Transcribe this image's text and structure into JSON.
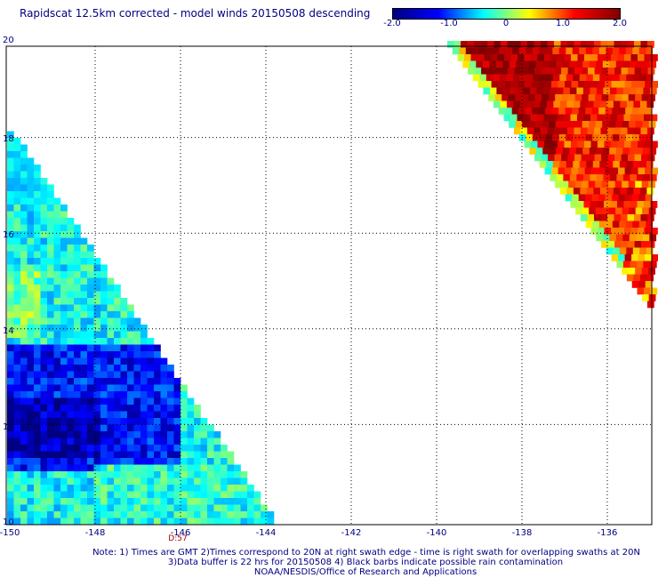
{
  "title": "Rapidscat 12.5km corrected - model winds 20150508 descending",
  "colorbar": {
    "labels": [
      "-2.0",
      "-1.0",
      "0",
      "1.0",
      "2.0"
    ],
    "range": [
      -2.0,
      2.0
    ],
    "stops": [
      "#000080",
      "#0000ff",
      "#00ffff",
      "#ffff00",
      "#ff0000",
      "#800000"
    ]
  },
  "axes": {
    "x_ticks": [
      "-150",
      "-148",
      "-146",
      "-144",
      "-142",
      "-140",
      "-138",
      "-136"
    ],
    "y_ticks": [
      "20",
      "18",
      "16",
      "14",
      "12",
      "10"
    ],
    "lon_range": [
      -150,
      -134.8
    ],
    "lat_range": [
      10,
      20
    ],
    "grid": "dotted"
  },
  "swath_time_label": "D:57",
  "footer": {
    "line1": "Note: 1) Times are GMT 2)Times correspond to 20N at right swath edge - time is right swath for overlapping swaths at 20N",
    "line2": "3)Data buffer is 22 hrs for 20150508 4) Black barbs indicate possible rain contamination",
    "line3": "NOAA/NESDIS/Office of Research and Applications"
  }
}
